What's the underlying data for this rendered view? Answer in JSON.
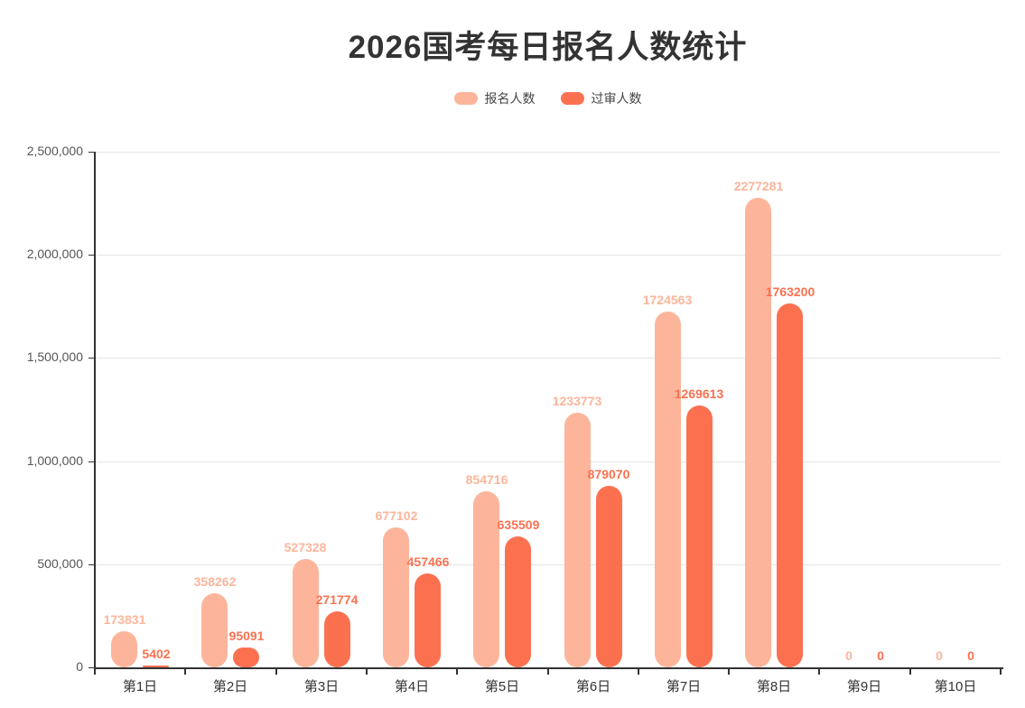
{
  "title": "2026国考每日报名人数统计",
  "legend": {
    "items": [
      {
        "label": "报名人数",
        "color": "#fcb59b"
      },
      {
        "label": "过审人数",
        "color": "#fb7150"
      }
    ]
  },
  "chart_data": {
    "type": "bar",
    "title": "2026国考每日报名人数统计",
    "categories": [
      "第1日",
      "第2日",
      "第3日",
      "第4日",
      "第5日",
      "第6日",
      "第7日",
      "第8日",
      "第9日",
      "第10日"
    ],
    "series": [
      {
        "name": "报名人数",
        "color": "#fcb59b",
        "values": [
          173831,
          358262,
          527328,
          677102,
          854716,
          1233773,
          1724563,
          2277281,
          0,
          0
        ]
      },
      {
        "name": "过审人数",
        "color": "#fb7150",
        "values": [
          5402,
          95091,
          271774,
          457466,
          635509,
          879070,
          1269613,
          1763200,
          0,
          0
        ]
      }
    ],
    "ylim": [
      0,
      2500000
    ],
    "ytick_interval": 500000,
    "ytick_labels": [
      "0",
      "500,000",
      "1,000,000",
      "1,500,000",
      "2,000,000",
      "2,500,000"
    ],
    "grid": true,
    "legend_position": "top",
    "bar_value_labels": true
  },
  "colors": {
    "axis": "#333333",
    "gridline": "#e4e4e4",
    "title_text": "#333333",
    "y_label_text": "#555555",
    "x_label_text": "#333333",
    "legend_text": "#444444",
    "background": "#ffffff"
  }
}
